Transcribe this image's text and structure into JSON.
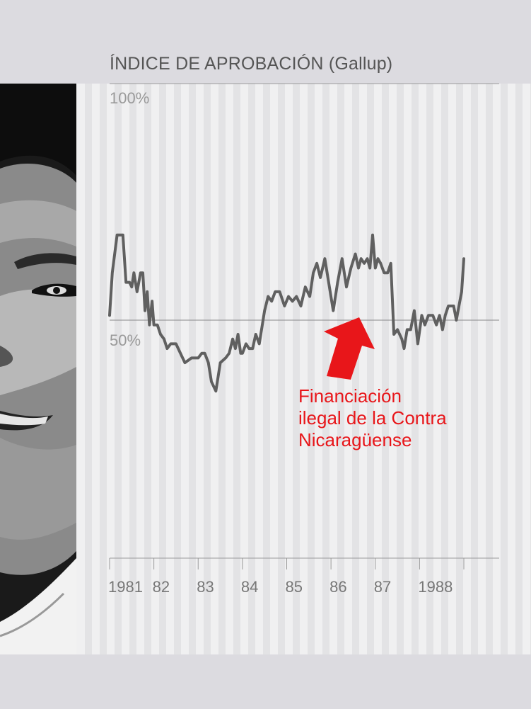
{
  "chart_data": {
    "type": "line",
    "title": "ÍNDICE DE APROBACIÓN (Gallup)",
    "xlabel": "",
    "ylabel": "",
    "x_tick_labels": [
      "1981",
      "82",
      "83",
      "84",
      "85",
      "86",
      "87",
      "1988"
    ],
    "x_ticks": [
      1981,
      1982,
      1983,
      1984,
      1985,
      1986,
      1987,
      1988
    ],
    "xlim": [
      1981,
      1989
    ],
    "y_tick_labels": [
      "100%",
      "50%"
    ],
    "y_ticks": [
      100,
      50
    ],
    "ylim": [
      0,
      100
    ],
    "grid": false,
    "reference_line": 50,
    "annotation": {
      "lines": [
        "Financiación",
        "ilegal de la Contra",
        "Nicaragüense"
      ],
      "color": "#e8161a"
    },
    "series": [
      {
        "color": "#606060",
        "points": [
          [
            1981.0,
            51
          ],
          [
            1981.06,
            60
          ],
          [
            1981.17,
            68
          ],
          [
            1981.3,
            68
          ],
          [
            1981.37,
            58
          ],
          [
            1981.45,
            58
          ],
          [
            1981.5,
            57
          ],
          [
            1981.55,
            60
          ],
          [
            1981.62,
            56
          ],
          [
            1981.7,
            60
          ],
          [
            1981.75,
            60
          ],
          [
            1981.8,
            52
          ],
          [
            1981.85,
            56
          ],
          [
            1981.9,
            49
          ],
          [
            1981.96,
            54
          ],
          [
            1982.0,
            49
          ],
          [
            1982.08,
            49
          ],
          [
            1982.15,
            47
          ],
          [
            1982.23,
            46
          ],
          [
            1982.3,
            44
          ],
          [
            1982.38,
            45
          ],
          [
            1982.5,
            45
          ],
          [
            1982.6,
            43
          ],
          [
            1982.7,
            41
          ],
          [
            1982.85,
            42
          ],
          [
            1983.0,
            42
          ],
          [
            1983.08,
            43
          ],
          [
            1983.15,
            43
          ],
          [
            1983.23,
            41
          ],
          [
            1983.3,
            37
          ],
          [
            1983.4,
            35
          ],
          [
            1983.5,
            41
          ],
          [
            1983.62,
            42
          ],
          [
            1983.7,
            43
          ],
          [
            1983.78,
            46
          ],
          [
            1983.84,
            44
          ],
          [
            1983.9,
            47
          ],
          [
            1983.96,
            43
          ],
          [
            1984.0,
            43
          ],
          [
            1984.08,
            45
          ],
          [
            1984.15,
            44
          ],
          [
            1984.23,
            44
          ],
          [
            1984.3,
            47
          ],
          [
            1984.38,
            45
          ],
          [
            1984.5,
            52
          ],
          [
            1984.58,
            55
          ],
          [
            1984.66,
            54
          ],
          [
            1984.74,
            56
          ],
          [
            1984.84,
            56
          ],
          [
            1984.95,
            53
          ],
          [
            1985.04,
            55
          ],
          [
            1985.13,
            54
          ],
          [
            1985.22,
            55
          ],
          [
            1985.32,
            53
          ],
          [
            1985.42,
            57
          ],
          [
            1985.52,
            55
          ],
          [
            1985.6,
            60
          ],
          [
            1985.68,
            62
          ],
          [
            1985.76,
            59
          ],
          [
            1985.86,
            63
          ],
          [
            1986.05,
            52
          ],
          [
            1986.15,
            58
          ],
          [
            1986.25,
            63
          ],
          [
            1986.35,
            57
          ],
          [
            1986.45,
            61
          ],
          [
            1986.55,
            64
          ],
          [
            1986.62,
            61
          ],
          [
            1986.68,
            63
          ],
          [
            1986.75,
            62
          ],
          [
            1986.82,
            63
          ],
          [
            1986.88,
            61
          ],
          [
            1986.94,
            68
          ],
          [
            1987.0,
            61
          ],
          [
            1987.06,
            63
          ],
          [
            1987.12,
            62
          ],
          [
            1987.2,
            60
          ],
          [
            1987.28,
            60
          ],
          [
            1987.35,
            62
          ],
          [
            1987.42,
            47
          ],
          [
            1987.5,
            48
          ],
          [
            1987.6,
            46
          ],
          [
            1987.65,
            44
          ],
          [
            1987.72,
            48
          ],
          [
            1987.8,
            48
          ],
          [
            1987.88,
            52
          ],
          [
            1987.96,
            45
          ],
          [
            1988.05,
            51
          ],
          [
            1988.12,
            49
          ],
          [
            1988.2,
            51
          ],
          [
            1988.3,
            51
          ],
          [
            1988.38,
            49
          ],
          [
            1988.45,
            51
          ],
          [
            1988.52,
            48
          ],
          [
            1988.58,
            51
          ],
          [
            1988.65,
            53
          ],
          [
            1988.7,
            53
          ],
          [
            1988.77,
            53
          ],
          [
            1988.83,
            50
          ],
          [
            1988.89,
            53
          ],
          [
            1988.95,
            56
          ],
          [
            1989.0,
            63
          ]
        ]
      }
    ]
  }
}
